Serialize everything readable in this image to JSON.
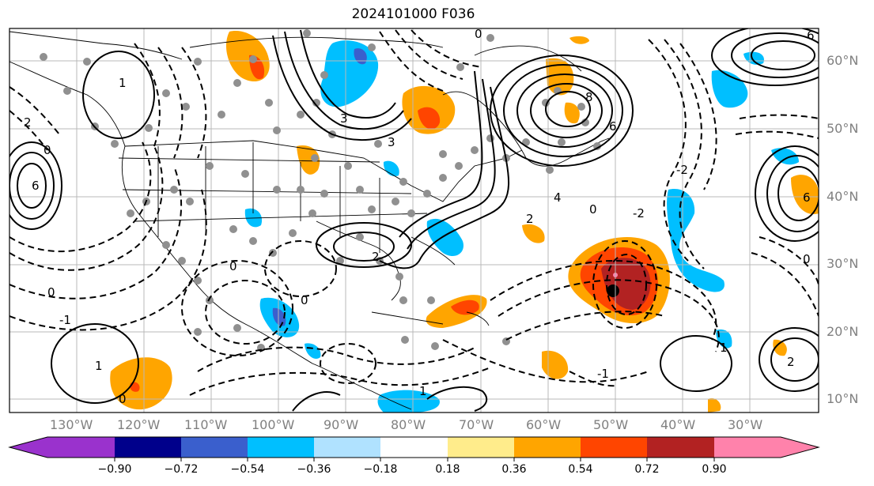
{
  "title": "2024101000 F036",
  "lat_labels": [
    "60°N",
    "50°N",
    "40°N",
    "30°N",
    "20°N",
    "10°N"
  ],
  "lon_labels": [
    "130°W",
    "120°W",
    "110°W",
    "100°W",
    "90°W",
    "80°W",
    "70°W",
    "60°W",
    "50°W",
    "40°W",
    "30°W"
  ],
  "colorbar": {
    "ticks": [
      "−0.90",
      "−0.72",
      "−0.54",
      "−0.36",
      "−0.18",
      "0.18",
      "0.36",
      "0.54",
      "0.72",
      "0.90"
    ],
    "colors": [
      "#9a32cd",
      "#00008b",
      "#3a5fcd",
      "#00bfff",
      "#b0e2ff",
      "#ffffff",
      "#ffec8b",
      "#ffa500",
      "#ff4500",
      "#b22222",
      "#ff82ab"
    ]
  },
  "contour_labels": [
    "0",
    "1",
    "2",
    "3",
    "4",
    "6",
    "8",
    "-1",
    "-2"
  ],
  "colors": {
    "positive": "#ffa500",
    "strong_positive": "#ff4500",
    "max_positive": "#b22222",
    "negative": "#00bfff",
    "strong_negative": "#3a5fcd",
    "station": "#909090"
  }
}
